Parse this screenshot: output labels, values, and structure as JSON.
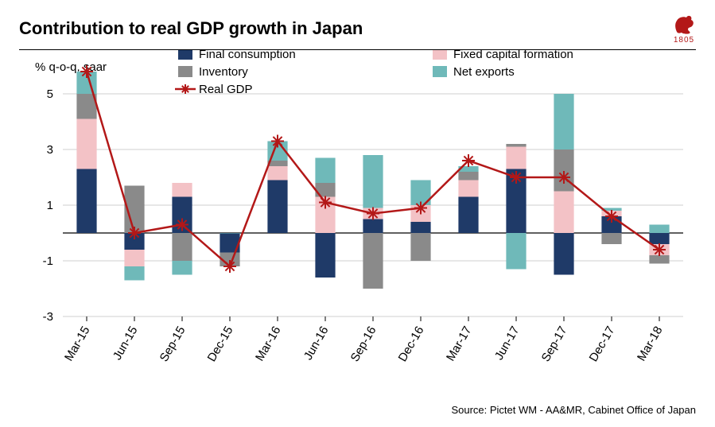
{
  "title": "Contribution to real GDP growth in Japan",
  "logo": {
    "year": "1805",
    "color": "#b31818"
  },
  "source": "Source: Pictet WM - AA&MR, Cabinet Office of Japan",
  "chart": {
    "type": "stacked-bar-with-line",
    "y_axis_title": "% q-o-q, saar",
    "ylim": [
      -3,
      6
    ],
    "yticks": [
      -3,
      -1,
      1,
      3,
      5
    ],
    "background_color": "#ffffff",
    "grid_color": "#cfcfcf",
    "zero_line_color": "#000000",
    "tick_font_size": 15,
    "bar_width_ratio": 0.42,
    "categories": [
      "Mar-15",
      "Jun-15",
      "Sep-15",
      "Dec-15",
      "Mar-16",
      "Jun-16",
      "Sep-16",
      "Dec-16",
      "Mar-17",
      "Jun-17",
      "Sep-17",
      "Dec-17",
      "Mar-18"
    ],
    "series": [
      {
        "key": "final_consumption",
        "label": "Final consumption",
        "color": "#1f3a68",
        "type": "bar"
      },
      {
        "key": "fixed_capital",
        "label": "Fixed capital formation",
        "color": "#f3c2c6",
        "type": "bar"
      },
      {
        "key": "inventory",
        "label": "Inventory",
        "color": "#8a8a8a",
        "type": "bar"
      },
      {
        "key": "net_exports",
        "label": "Net exports",
        "color": "#6fb9b9",
        "type": "bar"
      },
      {
        "key": "real_gdp",
        "label": "Real GDP",
        "color": "#b31818",
        "type": "line",
        "marker": "asterisk",
        "marker_size": 8,
        "line_width": 2.5
      }
    ],
    "data": [
      {
        "label": "Mar-15",
        "final_consumption": 2.3,
        "fixed_capital": 1.8,
        "inventory": 0.9,
        "net_exports": 0.8,
        "real_gdp": 5.8
      },
      {
        "label": "Jun-15",
        "final_consumption": -0.6,
        "fixed_capital": -0.6,
        "inventory": 1.7,
        "net_exports": -0.5,
        "real_gdp": 0.0
      },
      {
        "label": "Sep-15",
        "final_consumption": 1.3,
        "fixed_capital": 0.5,
        "inventory": -1.0,
        "net_exports": -0.5,
        "real_gdp": 0.3
      },
      {
        "label": "Dec-15",
        "final_consumption": -0.7,
        "fixed_capital": 0.0,
        "inventory": -0.5,
        "net_exports": 0.0,
        "real_gdp": -1.2
      },
      {
        "label": "Mar-16",
        "final_consumption": 1.9,
        "fixed_capital": 0.5,
        "inventory": 0.2,
        "net_exports": 0.7,
        "real_gdp": 3.3
      },
      {
        "label": "Jun-16",
        "final_consumption": -1.6,
        "fixed_capital": 1.3,
        "inventory": 0.5,
        "net_exports": 0.9,
        "real_gdp": 1.1
      },
      {
        "label": "Sep-16",
        "final_consumption": 0.5,
        "fixed_capital": 0.4,
        "inventory": -2.0,
        "net_exports": 1.9,
        "real_gdp": 0.7
      },
      {
        "label": "Dec-16",
        "final_consumption": 0.4,
        "fixed_capital": 0.6,
        "inventory": -1.0,
        "net_exports": 0.9,
        "real_gdp": 0.9
      },
      {
        "label": "Mar-17",
        "final_consumption": 1.3,
        "fixed_capital": 0.6,
        "inventory": 0.3,
        "net_exports": 0.2,
        "real_gdp": 2.6
      },
      {
        "label": "Jun-17",
        "final_consumption": 2.3,
        "fixed_capital": 0.8,
        "inventory": 0.1,
        "net_exports": -1.3,
        "real_gdp": 2.0
      },
      {
        "label": "Sep-17",
        "final_consumption": -1.5,
        "fixed_capital": 1.5,
        "inventory": 1.5,
        "net_exports": 2.0,
        "real_gdp": 2.0
      },
      {
        "label": "Dec-17",
        "final_consumption": 0.6,
        "fixed_capital": 0.2,
        "inventory": -0.4,
        "net_exports": 0.1,
        "real_gdp": 0.6
      },
      {
        "label": "Mar-18",
        "final_consumption": -0.4,
        "fixed_capital": -0.4,
        "inventory": -0.3,
        "net_exports": 0.3,
        "real_gdp": -0.6
      }
    ]
  }
}
